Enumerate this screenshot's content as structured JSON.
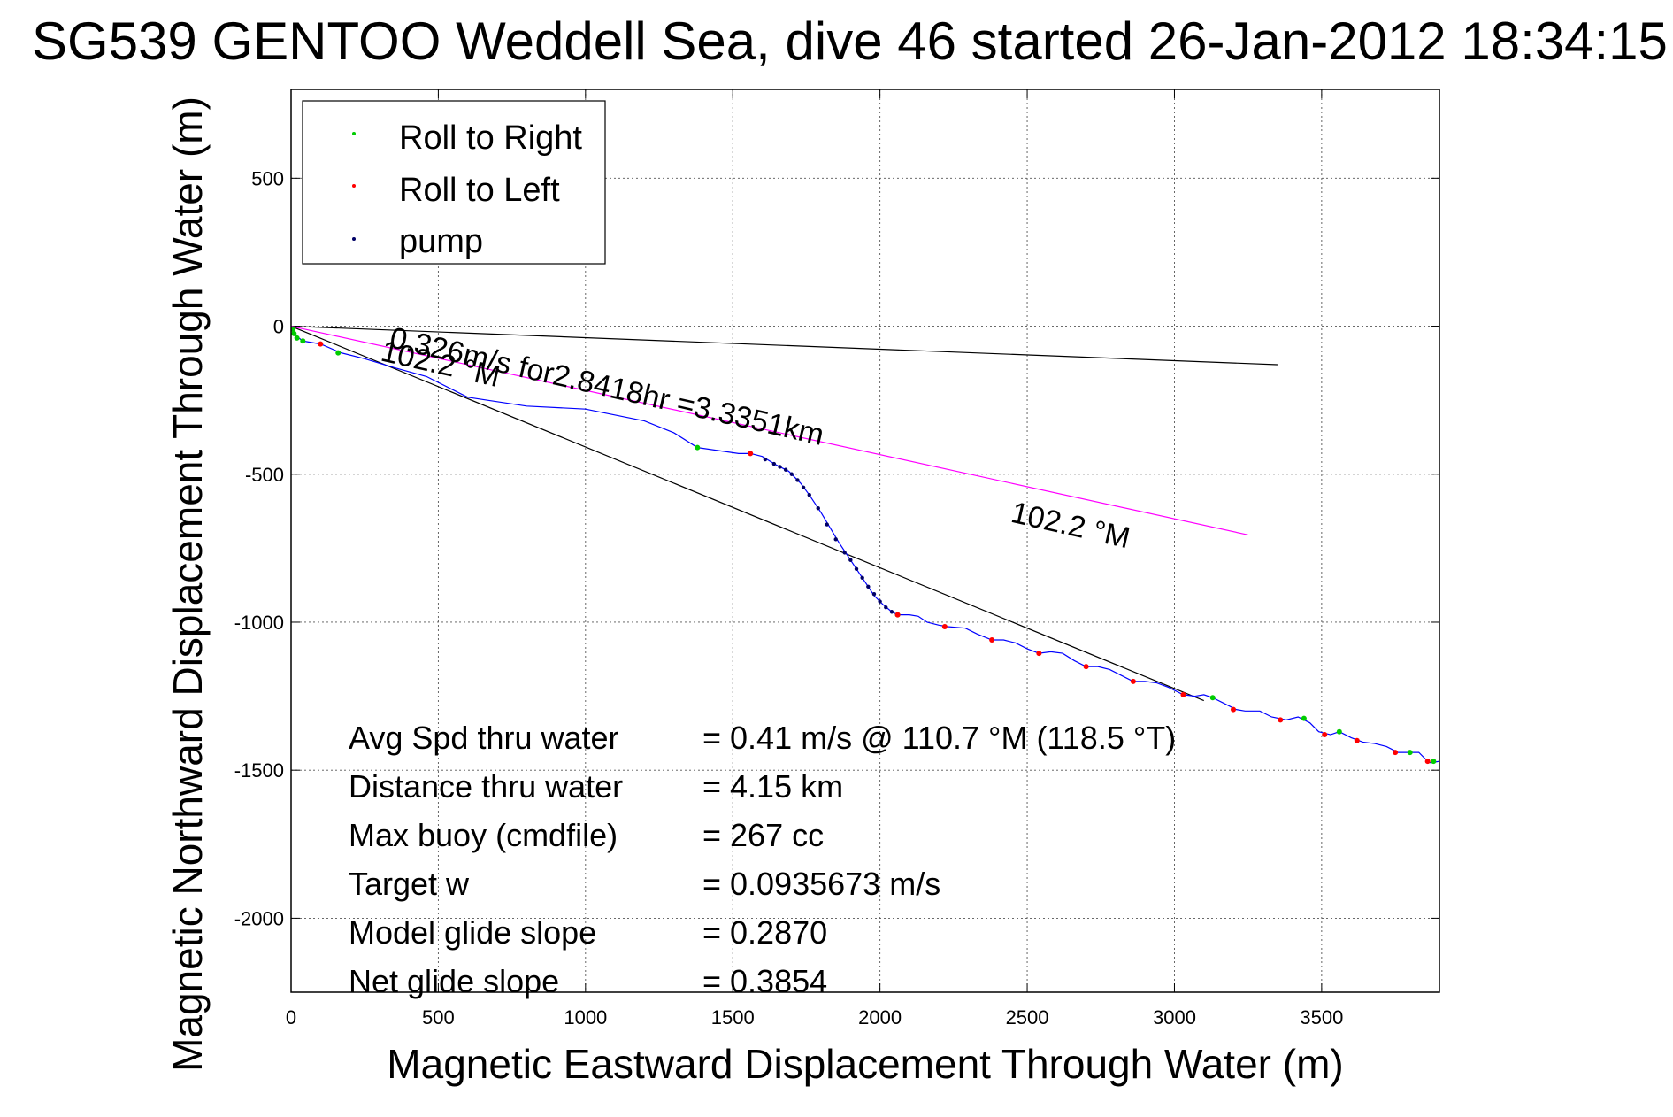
{
  "chart_data": {
    "type": "line",
    "title": "SG539 GENTOO Weddell Sea, dive 46 started 26-Jan-2012 18:34:15",
    "xlabel": "Magnetic Eastward Displacement Through Water (m)",
    "ylabel": "Magnetic Northward Displacement Through Water (m)",
    "xlim": [
      0,
      3900
    ],
    "ylim": [
      -2250,
      800
    ],
    "xticks": [
      0,
      500,
      1000,
      1500,
      2000,
      2500,
      3000,
      3500
    ],
    "yticks": [
      500,
      0,
      -500,
      -1000,
      -1500,
      -2000
    ],
    "grid": true,
    "legend_position": "top-left",
    "legend": [
      {
        "label": "Roll to Right",
        "color": "#00cc00"
      },
      {
        "label": "Roll to Left",
        "color": "#ff0000"
      },
      {
        "label": "pump",
        "color": "#000066"
      }
    ],
    "track": {
      "name": "track",
      "color": "#0000ff",
      "points": [
        [
          0,
          0
        ],
        [
          10,
          -20
        ],
        [
          20,
          -35
        ],
        [
          40,
          -50
        ],
        [
          100,
          -60
        ],
        [
          170,
          -90
        ],
        [
          250,
          -110
        ],
        [
          350,
          -140
        ],
        [
          460,
          -170
        ],
        [
          600,
          -240
        ],
        [
          800,
          -270
        ],
        [
          1000,
          -280
        ],
        [
          1200,
          -320
        ],
        [
          1300,
          -360
        ],
        [
          1380,
          -410
        ],
        [
          1450,
          -420
        ],
        [
          1520,
          -430
        ],
        [
          1560,
          -430
        ],
        [
          1600,
          -440
        ],
        [
          1650,
          -470
        ],
        [
          1690,
          -490
        ],
        [
          1730,
          -530
        ],
        [
          1760,
          -570
        ],
        [
          1800,
          -630
        ],
        [
          1830,
          -680
        ],
        [
          1860,
          -730
        ],
        [
          1900,
          -790
        ],
        [
          1940,
          -850
        ],
        [
          1980,
          -910
        ],
        [
          2010,
          -940
        ],
        [
          2040,
          -965
        ],
        [
          2060,
          -975
        ],
        [
          2100,
          -975
        ],
        [
          2130,
          -980
        ],
        [
          2160,
          -1000
        ],
        [
          2200,
          -1010
        ],
        [
          2230,
          -1015
        ],
        [
          2290,
          -1020
        ],
        [
          2330,
          -1040
        ],
        [
          2380,
          -1060
        ],
        [
          2420,
          -1060
        ],
        [
          2460,
          -1070
        ],
        [
          2500,
          -1090
        ],
        [
          2540,
          -1105
        ],
        [
          2580,
          -1100
        ],
        [
          2620,
          -1105
        ],
        [
          2660,
          -1130
        ],
        [
          2700,
          -1150
        ],
        [
          2740,
          -1150
        ],
        [
          2780,
          -1160
        ],
        [
          2820,
          -1180
        ],
        [
          2860,
          -1200
        ],
        [
          2900,
          -1200
        ],
        [
          2940,
          -1205
        ],
        [
          2980,
          -1220
        ],
        [
          3030,
          -1245
        ],
        [
          3070,
          -1250
        ],
        [
          3100,
          -1245
        ],
        [
          3130,
          -1255
        ],
        [
          3170,
          -1275
        ],
        [
          3210,
          -1295
        ],
        [
          3240,
          -1300
        ],
        [
          3290,
          -1300
        ],
        [
          3330,
          -1320
        ],
        [
          3380,
          -1330
        ],
        [
          3420,
          -1320
        ],
        [
          3460,
          -1340
        ],
        [
          3490,
          -1370
        ],
        [
          3530,
          -1380
        ],
        [
          3560,
          -1370
        ],
        [
          3600,
          -1390
        ],
        [
          3640,
          -1405
        ],
        [
          3680,
          -1410
        ],
        [
          3720,
          -1420
        ],
        [
          3760,
          -1440
        ],
        [
          3800,
          -1440
        ],
        [
          3830,
          -1440
        ],
        [
          3850,
          -1460
        ],
        [
          3870,
          -1475
        ],
        [
          3900,
          -1470
        ]
      ]
    },
    "markers_roll_right": [
      [
        5,
        -10
      ],
      [
        10,
        -25
      ],
      [
        20,
        -40
      ],
      [
        40,
        -50
      ],
      [
        160,
        -90
      ],
      [
        1380,
        -410
      ],
      [
        2060,
        -975
      ],
      [
        3130,
        -1255
      ],
      [
        3440,
        -1325
      ],
      [
        3560,
        -1370
      ],
      [
        3800,
        -1440
      ],
      [
        3880,
        -1470
      ]
    ],
    "markers_roll_left": [
      [
        100,
        -60
      ],
      [
        1560,
        -430
      ],
      [
        2060,
        -975
      ],
      [
        2220,
        -1015
      ],
      [
        2380,
        -1060
      ],
      [
        2540,
        -1105
      ],
      [
        2700,
        -1150
      ],
      [
        2860,
        -1200
      ],
      [
        3030,
        -1245
      ],
      [
        3200,
        -1295
      ],
      [
        3360,
        -1330
      ],
      [
        3510,
        -1380
      ],
      [
        3620,
        -1400
      ],
      [
        3750,
        -1440
      ],
      [
        3860,
        -1470
      ]
    ],
    "markers_pump": [
      [
        1610,
        -450
      ],
      [
        1640,
        -465
      ],
      [
        1660,
        -475
      ],
      [
        1680,
        -485
      ],
      [
        1700,
        -500
      ],
      [
        1720,
        -520
      ],
      [
        1740,
        -545
      ],
      [
        1760,
        -570
      ],
      [
        1790,
        -615
      ],
      [
        1820,
        -670
      ],
      [
        1850,
        -720
      ],
      [
        1880,
        -765
      ],
      [
        1900,
        -790
      ],
      [
        1920,
        -820
      ],
      [
        1940,
        -850
      ],
      [
        1960,
        -880
      ],
      [
        1980,
        -905
      ],
      [
        2000,
        -930
      ],
      [
        2020,
        -950
      ],
      [
        2040,
        -965
      ]
    ],
    "reference_lines": [
      {
        "color": "#000000",
        "points": [
          [
            0,
            0
          ],
          [
            3350,
            -130
          ]
        ]
      },
      {
        "color": "#000000",
        "points": [
          [
            0,
            0
          ],
          [
            3100,
            -1265
          ]
        ]
      },
      {
        "color": "#ff00ff",
        "points": [
          [
            0,
            0
          ],
          [
            3250,
            -705
          ]
        ]
      }
    ],
    "annotations": [
      {
        "text": "0.326m/s for2.8418hr =3.3351km",
        "x": 330,
        "y": -70,
        "rotation_deg": 12.8,
        "color": "#000000"
      },
      {
        "text": "102.2 °M",
        "x": 300,
        "y": -115,
        "rotation_deg": 12.8,
        "color": "#000000"
      },
      {
        "text": "102.2 °M",
        "x": 2440,
        "y": -660,
        "rotation_deg": 12.8,
        "color": "#000000"
      }
    ],
    "summary": [
      {
        "label": "Avg Spd thru water",
        "value": "=  0.41 m/s @ 110.7 °M (118.5 °T)"
      },
      {
        "label": "Distance thru water",
        "value": "=  4.15 km"
      },
      {
        "label": "Max buoy (cmdfile)",
        "value": "= 267 cc"
      },
      {
        "label": "Target w",
        "value": "= 0.0935673 m/s"
      },
      {
        "label": "Model glide slope",
        "value": "= 0.2870"
      },
      {
        "label": "Net glide slope",
        "value": "= 0.3854"
      }
    ]
  }
}
